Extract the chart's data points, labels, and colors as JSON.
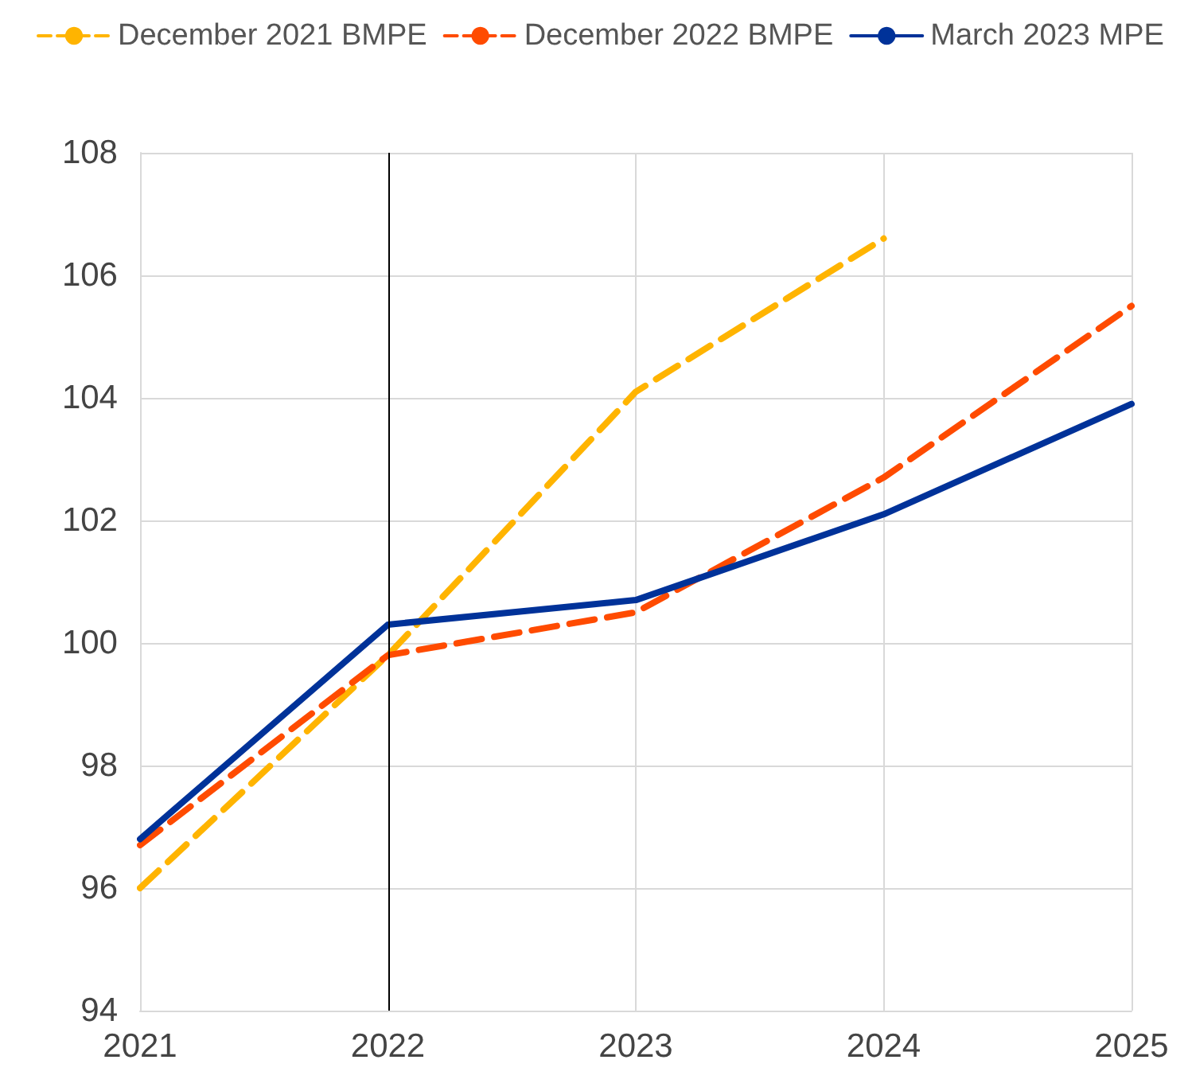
{
  "chart_data": {
    "type": "line",
    "x": [
      2021,
      2022,
      2023,
      2024,
      2025
    ],
    "xlim": [
      2021,
      2025
    ],
    "xticks": [
      2021,
      2022,
      2023,
      2024,
      2025
    ],
    "ylim": [
      94,
      108
    ],
    "yticks": [
      94,
      96,
      98,
      100,
      102,
      104,
      106,
      108
    ],
    "grid": true,
    "legend": "top",
    "marker": "none",
    "ref_lines": [
      {
        "axis": "x",
        "value": 2022,
        "color": "#000000"
      }
    ],
    "series": [
      {
        "name": "December 2021 BMPE",
        "color": "#ffb400",
        "line_style": "dashed",
        "values": [
          96.0,
          99.8,
          104.1,
          106.6,
          null
        ]
      },
      {
        "name": "December 2022 BMPE",
        "color": "#ff4b00",
        "line_style": "dashed",
        "values": [
          96.7,
          99.8,
          100.5,
          102.7,
          105.5
        ]
      },
      {
        "name": "March 2023 MPE",
        "color": "#003299",
        "line_style": "solid",
        "values": [
          96.8,
          100.3,
          100.7,
          102.1,
          103.9
        ]
      }
    ]
  }
}
